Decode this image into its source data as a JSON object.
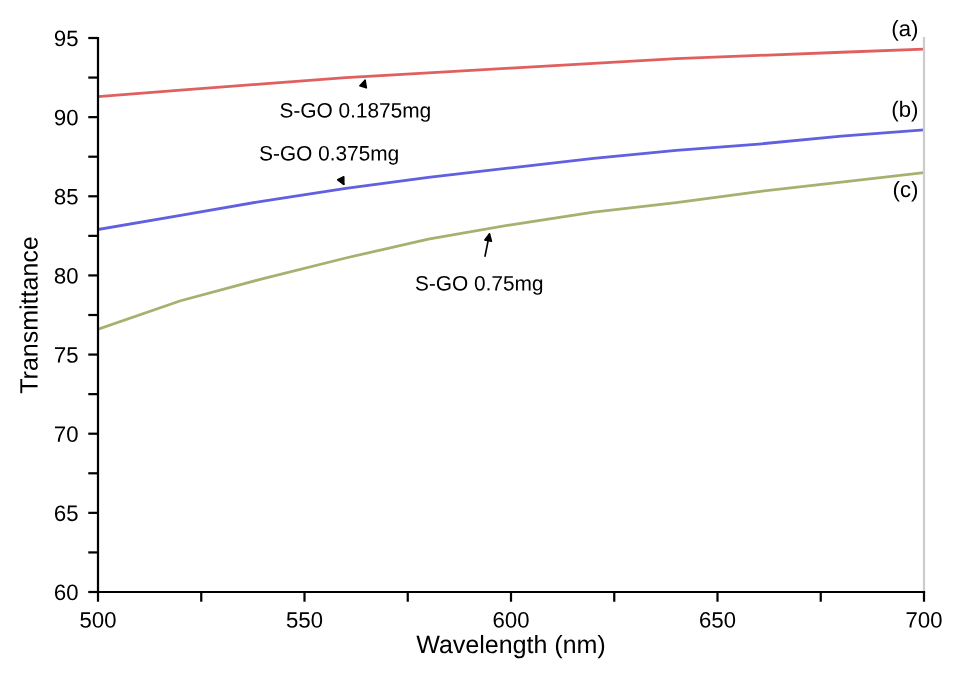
{
  "chart_data": {
    "type": "line",
    "xlabel": "Wavelength (nm)",
    "ylabel": "Transmittance",
    "x": [
      500,
      520,
      540,
      560,
      580,
      600,
      620,
      640,
      660,
      680,
      700
    ],
    "series": [
      {
        "name": "(a)",
        "color": "#e06060",
        "values": [
          91.3,
          91.7,
          92.1,
          92.5,
          92.8,
          93.1,
          93.4,
          93.7,
          93.9,
          94.1,
          94.3
        ]
      },
      {
        "name": "(b)",
        "color": "#6060e0",
        "values": [
          82.9,
          83.8,
          84.7,
          85.5,
          86.2,
          86.8,
          87.4,
          87.9,
          88.3,
          88.8,
          89.2
        ]
      },
      {
        "name": "(c)",
        "color": "#a8b070",
        "values": [
          76.6,
          78.4,
          79.8,
          81.1,
          82.3,
          83.2,
          84.0,
          84.6,
          85.3,
          85.9,
          86.5
        ]
      }
    ],
    "annotations": [
      {
        "text": "S-GO 0.1875mg",
        "x": 565,
        "y": 92.6
      },
      {
        "text": "S-GO 0.375mg",
        "x": 560,
        "y": 85.5
      },
      {
        "text": "S-GO 0.75mg",
        "x": 595,
        "y": 82.9
      }
    ],
    "xlim": [
      500,
      700
    ],
    "ylim": [
      60,
      95
    ],
    "xticks": [
      500,
      {
        "value": 525,
        "label": null
      },
      550,
      {
        "value": 575,
        "label": null
      },
      600,
      {
        "value": 625,
        "label": null
      },
      650,
      {
        "value": 675,
        "label": null
      },
      700
    ],
    "yticks": [
      60,
      {
        "value": 62.5,
        "label": null
      },
      65,
      {
        "value": 67.5,
        "label": null
      },
      70,
      {
        "value": 72.5,
        "label": null
      },
      75,
      {
        "value": 77.5,
        "label": null
      },
      80,
      {
        "value": 82.5,
        "label": null
      },
      85,
      {
        "value": 87.5,
        "label": null
      },
      90,
      {
        "value": 92.5,
        "label": null
      },
      95
    ],
    "grid": false,
    "legend": false,
    "marker": "none",
    "line_style": "solid"
  }
}
